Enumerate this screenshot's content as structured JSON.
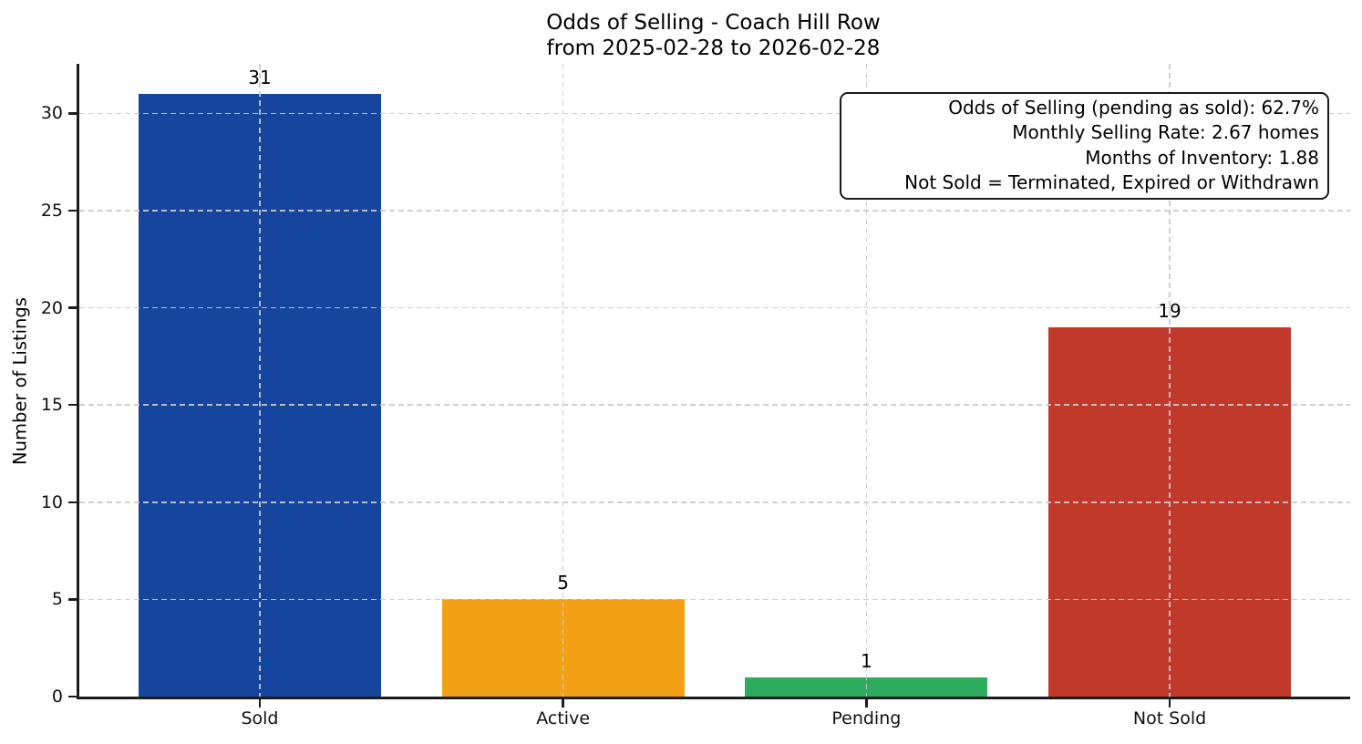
{
  "chart_data": {
    "type": "bar",
    "title": "Odds of Selling - Coach Hill Row",
    "subtitle": "from 2025-02-28 to 2026-02-28",
    "categories": [
      "Sold",
      "Active",
      "Pending",
      "Not Sold"
    ],
    "values": [
      31,
      5,
      1,
      19
    ],
    "bar_colors": [
      "#15459c",
      "#f2a114",
      "#2eac5e",
      "#c0392b"
    ],
    "xlabel": "",
    "ylabel": "Number of Listings",
    "ylim": [
      0,
      32.55
    ],
    "yticks": [
      0,
      5,
      10,
      15,
      20,
      25,
      30
    ],
    "grid": {
      "horizontal": true,
      "vertical": true,
      "style": "dashed",
      "color": "#cbcbcb"
    },
    "legend": "none",
    "annotation_box": {
      "lines": [
        "Odds of Selling (pending as sold): 62.7%",
        "Monthly Selling Rate: 2.67 homes",
        "Months of Inventory: 1.88",
        "Not Sold = Terminated, Expired or Withdrawn"
      ]
    }
  },
  "colors": {
    "background": "#ffffff",
    "axis": "#1c1c1c",
    "grid": "#cbcbcb",
    "text": "#000000"
  }
}
